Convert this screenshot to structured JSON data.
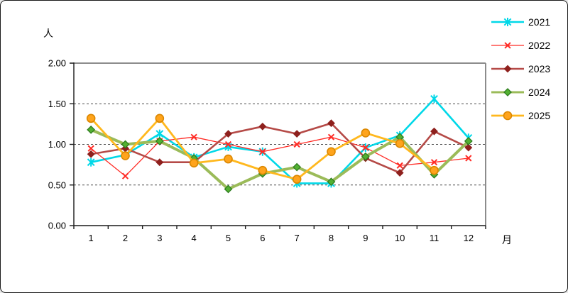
{
  "chart_data": {
    "type": "line",
    "title": "",
    "ylabel": "人",
    "xlabel": "月",
    "categories": [
      "1",
      "2",
      "3",
      "4",
      "5",
      "6",
      "7",
      "8",
      "9",
      "10",
      "11",
      "12"
    ],
    "ylim": [
      0.0,
      2.0
    ],
    "yticks": [
      0.0,
      0.5,
      1.0,
      1.5,
      2.0
    ],
    "ytick_labels": [
      "0.00",
      "0.50",
      "1.00",
      "1.50",
      "2.00"
    ],
    "grid": "horizontal-dashed",
    "legend_position": "top-right",
    "series": [
      {
        "name": "2021",
        "color": "#00d8e8",
        "marker": "asterisk",
        "marker_fill": "#00d8e8",
        "marker_stroke": "#00d8e8",
        "line_width": 2.6,
        "marker_size": 6,
        "values": [
          0.78,
          0.87,
          1.13,
          0.84,
          0.97,
          0.91,
          0.52,
          0.52,
          0.96,
          1.11,
          1.56,
          1.08
        ]
      },
      {
        "name": "2022",
        "color": "#ff2b25",
        "marker": "x",
        "marker_fill": "#ff2b25",
        "marker_stroke": "#ff2b25",
        "line_width": 1.3,
        "marker_size": 5,
        "values": [
          0.95,
          0.61,
          1.04,
          1.09,
          1.0,
          0.91,
          1.0,
          1.09,
          0.96,
          0.74,
          0.78,
          0.83
        ]
      },
      {
        "name": "2023",
        "color": "#b54a47",
        "marker": "diamond",
        "marker_fill": "#8e201d",
        "marker_stroke": "#8e201d",
        "line_width": 2.6,
        "marker_size": 4.5,
        "values": [
          0.88,
          0.95,
          0.78,
          0.78,
          1.13,
          1.22,
          1.13,
          1.26,
          0.83,
          0.65,
          1.16,
          0.96
        ]
      },
      {
        "name": "2024",
        "color": "#9bbb59",
        "marker": "diamond",
        "marker_fill": "#53b032",
        "marker_stroke": "#2e7d1f",
        "line_width": 4,
        "marker_size": 5,
        "values": [
          1.18,
          1.0,
          1.04,
          0.83,
          0.45,
          0.64,
          0.72,
          0.54,
          0.85,
          1.09,
          0.63,
          1.04
        ]
      },
      {
        "name": "2025",
        "color": "#ffb81e",
        "marker": "circle",
        "marker_fill": "#ffa41c",
        "marker_stroke": "#db8700",
        "line_width": 2.8,
        "marker_size": 5.5,
        "values": [
          1.32,
          0.86,
          1.32,
          0.77,
          0.82,
          0.68,
          0.57,
          0.91,
          1.14,
          1.01,
          0.68,
          null
        ]
      }
    ]
  }
}
